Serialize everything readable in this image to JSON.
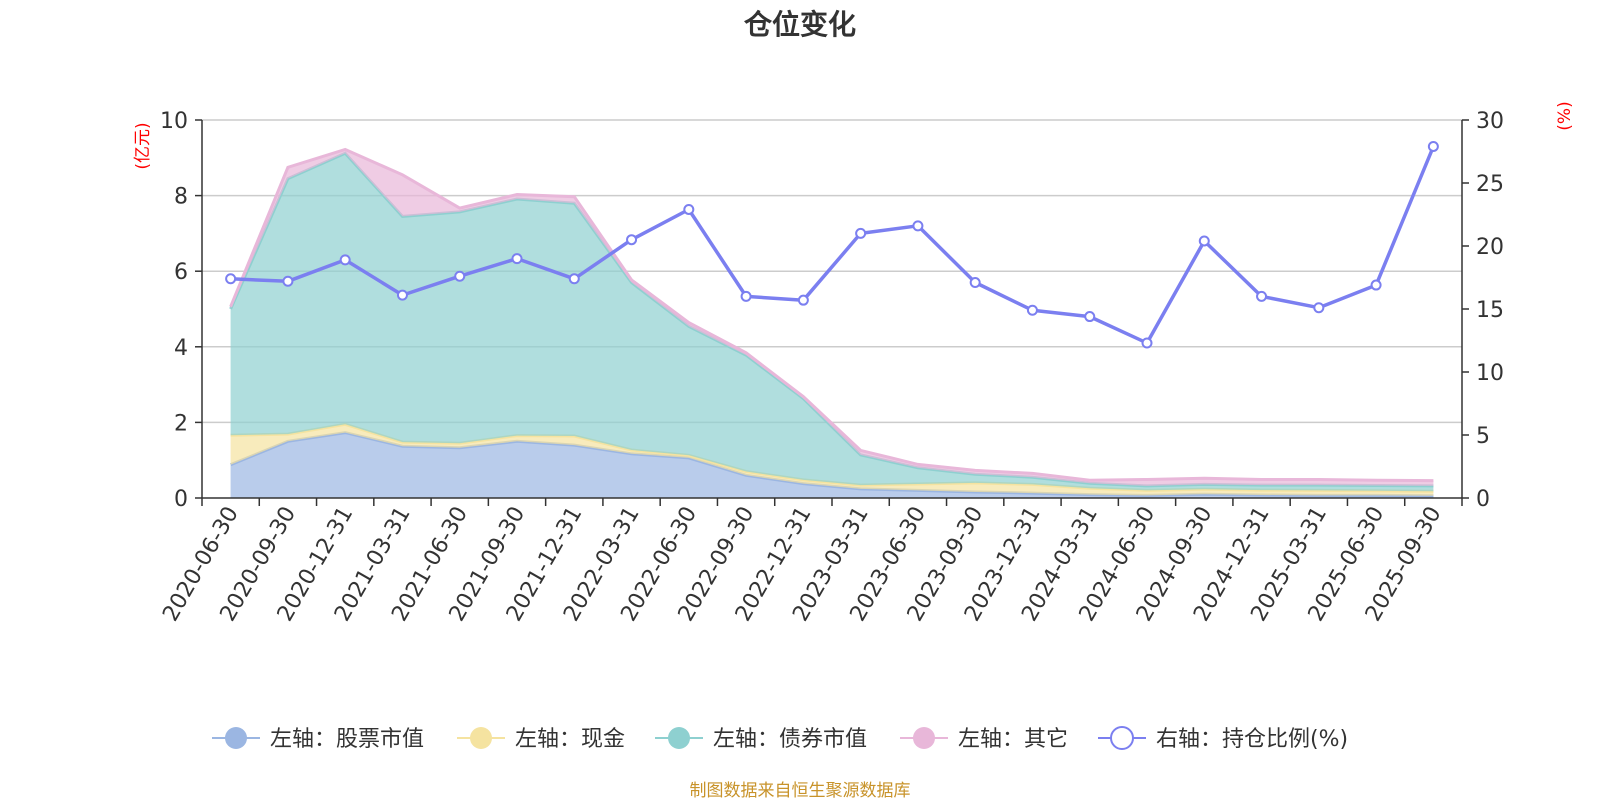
{
  "chart_data": {
    "type": "area",
    "title": "仓位变化",
    "left_unit": "(亿元)",
    "right_unit": "(%)",
    "source": "制图数据来自恒生聚源数据库",
    "categories": [
      "2020-06-30",
      "2020-09-30",
      "2020-12-31",
      "2021-03-31",
      "2021-06-30",
      "2021-09-30",
      "2021-12-31",
      "2022-03-31",
      "2022-06-30",
      "2022-09-30",
      "2022-12-31",
      "2023-03-31",
      "2023-06-30",
      "2023-09-30",
      "2023-12-31",
      "2024-03-31",
      "2024-06-30",
      "2024-09-30",
      "2024-12-31",
      "2025-03-31",
      "2025-06-30",
      "2025-09-30"
    ],
    "left_axis": {
      "min": 0,
      "max": 10,
      "ticks": [
        "0",
        "2",
        "4",
        "6",
        "8",
        "10"
      ]
    },
    "right_axis": {
      "min": 0,
      "max": 30,
      "ticks": [
        "0",
        "5",
        "10",
        "15",
        "20",
        "25",
        "30"
      ]
    },
    "series": [
      {
        "name": "左轴：股票市值",
        "axis": "left",
        "kind": "stacked-area",
        "color": "#9bb6e2",
        "values": [
          0.88,
          1.5,
          1.73,
          1.37,
          1.33,
          1.5,
          1.4,
          1.17,
          1.06,
          0.6,
          0.38,
          0.24,
          0.2,
          0.16,
          0.13,
          0.09,
          0.07,
          0.1,
          0.08,
          0.07,
          0.07,
          0.06
        ]
      },
      {
        "name": "左轴：现金",
        "axis": "left",
        "kind": "stacked-area",
        "color": "#f5e3a0",
        "values": [
          0.78,
          0.19,
          0.22,
          0.11,
          0.12,
          0.15,
          0.24,
          0.1,
          0.07,
          0.1,
          0.1,
          0.1,
          0.17,
          0.24,
          0.23,
          0.17,
          0.13,
          0.13,
          0.13,
          0.13,
          0.12,
          0.12
        ]
      },
      {
        "name": "左轴：债券市值",
        "axis": "left",
        "kind": "stacked-area",
        "color": "#8ed0d0",
        "values": [
          3.34,
          6.76,
          7.17,
          5.97,
          6.12,
          6.26,
          6.16,
          4.43,
          3.41,
          3.08,
          2.15,
          0.8,
          0.43,
          0.23,
          0.19,
          0.13,
          0.12,
          0.13,
          0.13,
          0.14,
          0.14,
          0.14
        ]
      },
      {
        "name": "左轴：其它",
        "axis": "left",
        "kind": "stacked-area",
        "color": "#e8b7d9",
        "values": [
          0.06,
          0.3,
          0.1,
          1.1,
          0.1,
          0.12,
          0.17,
          0.07,
          0.1,
          0.06,
          0.05,
          0.12,
          0.09,
          0.1,
          0.1,
          0.08,
          0.17,
          0.16,
          0.15,
          0.15,
          0.14,
          0.14
        ]
      },
      {
        "name": "右轴：持仓比例(%)",
        "axis": "right",
        "kind": "line",
        "color": "#7b7ff0",
        "values": [
          17.4,
          17.2,
          18.9,
          16.1,
          17.6,
          19.0,
          17.4,
          20.5,
          22.9,
          16.0,
          15.7,
          21.0,
          21.6,
          17.1,
          14.9,
          14.4,
          12.3,
          20.4,
          16.0,
          15.1,
          16.9,
          27.9
        ]
      }
    ]
  },
  "colors": {
    "axis": "#333333",
    "grid": "#cccccc",
    "unit": "#ff0000",
    "source": "#c8932a"
  }
}
